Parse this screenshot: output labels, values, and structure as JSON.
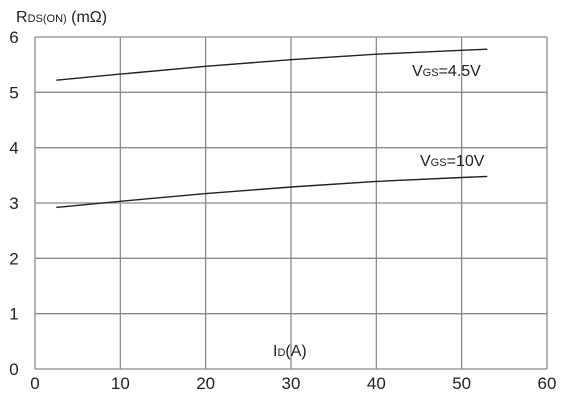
{
  "chart_data": {
    "type": "line",
    "ylabel_main": "R",
    "ylabel_sub": "DS(ON)",
    "ylabel_unit": " (mΩ)",
    "xlabel_main": "I",
    "xlabel_sub": "D",
    "xlabel_unit": "(A)",
    "xlim": [
      0,
      60
    ],
    "ylim": [
      0,
      6
    ],
    "xticks": [
      "0",
      "10",
      "20",
      "30",
      "40",
      "50",
      "60"
    ],
    "yticks": [
      "0",
      "1",
      "2",
      "3",
      "4",
      "5",
      "6"
    ],
    "grid": true,
    "colors": {
      "grid": "#8a8a8a",
      "line": "#222222",
      "background": "#ffffff"
    },
    "series": [
      {
        "name": "VGS=4.5V",
        "label_main": "V",
        "label_sub": "GS",
        "label_rest": "=4.5V",
        "x": [
          2.5,
          10,
          20,
          30,
          40,
          50,
          53
        ],
        "y": [
          5.22,
          5.33,
          5.47,
          5.59,
          5.69,
          5.76,
          5.78
        ]
      },
      {
        "name": "VGS=10V",
        "label_main": "V",
        "label_sub": "GS",
        "label_rest": "=10V",
        "x": [
          2.5,
          10,
          20,
          30,
          40,
          50,
          53
        ],
        "y": [
          2.92,
          3.03,
          3.17,
          3.29,
          3.39,
          3.46,
          3.48
        ]
      }
    ]
  }
}
